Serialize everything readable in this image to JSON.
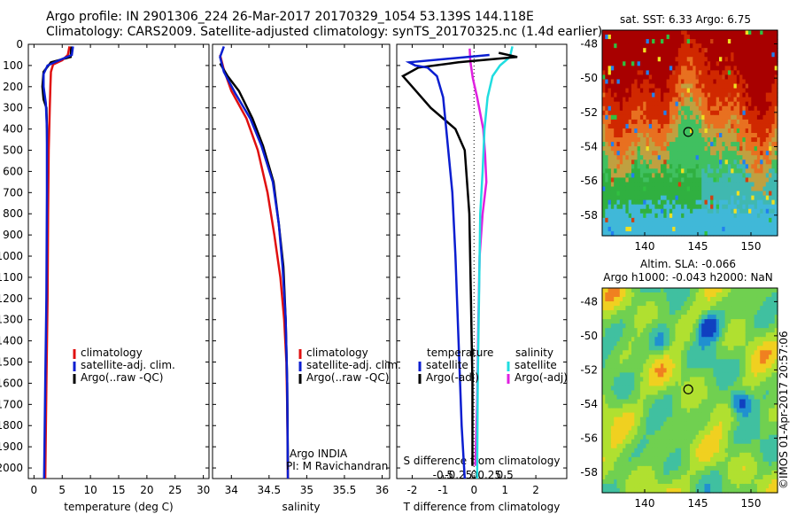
{
  "header": {
    "title_line1": "Argo profile: IN 2901306_224 26-Mar-2017 20170329_1054 53.139S 144.118E",
    "title_line2": "Climatology: CARS2009. Satellite-adjusted climatology: synTS_20170325.nc (1.4d earlier)"
  },
  "depth_ticks": [
    "0",
    "100",
    "200",
    "300",
    "400",
    "500",
    "600",
    "700",
    "800",
    "900",
    "1000",
    "1100",
    "1200",
    "1300",
    "1400",
    "1500",
    "1600",
    "1700",
    "1800",
    "1900",
    "2000"
  ],
  "chart_data": [
    {
      "id": "temperature",
      "type": "line",
      "xlabel": "temperature (deg C)",
      "ylabel": "",
      "xlim": [
        -1,
        31
      ],
      "ylim": [
        2050,
        0
      ],
      "xticks": [
        0,
        5,
        10,
        15,
        20,
        25,
        30
      ],
      "xtick_labels": [
        "0",
        "5",
        "10",
        "15",
        "20",
        "25",
        "30"
      ],
      "legend": {
        "placement": "bottom-center",
        "entries": [
          "climatology",
          "satellite-adj. clim.",
          "Argo(..raw -QC)"
        ]
      },
      "series": [
        {
          "name": "climatology",
          "color": "#e01010",
          "points": [
            [
              6.3,
              10
            ],
            [
              6.0,
              50
            ],
            [
              5.0,
              75
            ],
            [
              3.4,
              95
            ],
            [
              3.0,
              130
            ],
            [
              2.9,
              200
            ],
            [
              2.8,
              300
            ],
            [
              2.6,
              500
            ],
            [
              2.5,
              800
            ],
            [
              2.4,
              1200
            ],
            [
              2.2,
              1600
            ],
            [
              2.0,
              2050
            ]
          ]
        },
        {
          "name": "satellite-adj. clim.",
          "color": "#0b1ed0",
          "points": [
            [
              6.9,
              10
            ],
            [
              6.7,
              50
            ],
            [
              4.5,
              75
            ],
            [
              2.4,
              100
            ],
            [
              1.7,
              140
            ],
            [
              1.7,
              200
            ],
            [
              2.1,
              280
            ],
            [
              2.3,
              400
            ],
            [
              2.3,
              700
            ],
            [
              2.2,
              1200
            ],
            [
              2.0,
              1600
            ],
            [
              1.8,
              2050
            ]
          ]
        },
        {
          "name": "Argo(..raw -QC)",
          "color": "#000000",
          "points": [
            [
              6.6,
              10
            ],
            [
              6.5,
              60
            ],
            [
              3.0,
              85
            ],
            [
              1.7,
              130
            ],
            [
              1.5,
              200
            ],
            [
              1.7,
              260
            ],
            [
              2.2,
              300
            ],
            [
              2.3,
              400
            ],
            [
              2.4,
              600
            ],
            [
              2.3,
              1000
            ],
            [
              2.2,
              1400
            ],
            [
              2.0,
              1800
            ],
            [
              1.9,
              1990
            ]
          ]
        }
      ]
    },
    {
      "id": "salinity",
      "type": "line",
      "xlabel": "salinity",
      "ylabel": "",
      "xlim": [
        33.75,
        36.1
      ],
      "ylim": [
        2050,
        0
      ],
      "xticks": [
        34,
        34.5,
        35,
        35.5,
        36
      ],
      "xtick_labels": [
        "34",
        "34.5",
        "35",
        "35.5",
        "36"
      ],
      "legend": {
        "placement": "bottom-right",
        "entries": [
          "climatology",
          "satellite-adj. clim.",
          "Argo(..raw -QC)"
        ]
      },
      "annotations": [
        "Argo INDIA",
        "PI: M Ravichandran"
      ],
      "series": [
        {
          "name": "climatology",
          "color": "#e01010",
          "points": [
            [
              33.85,
              50
            ],
            [
              33.9,
              120
            ],
            [
              34.0,
              220
            ],
            [
              34.2,
              350
            ],
            [
              34.35,
              500
            ],
            [
              34.48,
              700
            ],
            [
              34.57,
              900
            ],
            [
              34.65,
              1100
            ],
            [
              34.7,
              1300
            ],
            [
              34.73,
              1500
            ],
            [
              34.74,
              1700
            ],
            [
              34.75,
              2050
            ]
          ]
        },
        {
          "name": "satellite-adj. clim.",
          "color": "#0b1ed0",
          "points": [
            [
              33.9,
              10
            ],
            [
              33.85,
              60
            ],
            [
              33.9,
              130
            ],
            [
              34.05,
              230
            ],
            [
              34.25,
              350
            ],
            [
              34.4,
              480
            ],
            [
              34.55,
              650
            ],
            [
              34.63,
              850
            ],
            [
              34.68,
              1050
            ],
            [
              34.72,
              1300
            ],
            [
              34.74,
              1600
            ],
            [
              34.75,
              2050
            ]
          ]
        },
        {
          "name": "Argo(..raw -QC)",
          "color": "#000000",
          "points": [
            [
              33.85,
              90
            ],
            [
              33.95,
              150
            ],
            [
              34.1,
              220
            ],
            [
              34.28,
              350
            ],
            [
              34.42,
              480
            ],
            [
              34.56,
              650
            ],
            [
              34.63,
              850
            ],
            [
              34.69,
              1050
            ],
            [
              34.72,
              1300
            ],
            [
              34.74,
              1600
            ],
            [
              34.75,
              1990
            ]
          ]
        }
      ]
    },
    {
      "id": "differences",
      "type": "line",
      "xlabel": "T difference from climatology",
      "xlabel_top": "S difference from climatology",
      "ylabel": "",
      "xlim": [
        -2.5,
        3.0
      ],
      "ylim": [
        2050,
        0
      ],
      "xticks": [
        -2,
        -1,
        0,
        1,
        2
      ],
      "xtick_labels": [
        "-2",
        "-1",
        "0",
        "1",
        "2"
      ],
      "s_ticks": [
        -0.5,
        -0.25,
        0,
        0.25,
        0.5
      ],
      "s_tick_labels": [
        "-0.5",
        "-0.25",
        "0",
        "0.25",
        "0.5"
      ],
      "legend": {
        "placement": "bottom-center",
        "group1_title": "temperature",
        "group2_title": "salinity",
        "entries": [
          "satellite",
          "Argo(-adj)",
          "satellite",
          "Argo(-adj)"
        ]
      },
      "series": [
        {
          "name": "satellite",
          "group": "temperature",
          "color": "#0b1ed0",
          "points": [
            [
              0.5,
              50
            ],
            [
              -2.1,
              85
            ],
            [
              -1.9,
              100
            ],
            [
              -1.5,
              110
            ],
            [
              -1.2,
              150
            ],
            [
              -1.0,
              250
            ],
            [
              -0.9,
              400
            ],
            [
              -0.7,
              700
            ],
            [
              -0.6,
              1000
            ],
            [
              -0.5,
              1400
            ],
            [
              -0.4,
              1800
            ],
            [
              -0.3,
              2050
            ]
          ]
        },
        {
          "name": "Argo(-adj)",
          "group": "temperature",
          "color": "#000000",
          "points": [
            [
              0.8,
              40
            ],
            [
              1.4,
              60
            ],
            [
              -0.5,
              85
            ],
            [
              -1.8,
              110
            ],
            [
              -2.3,
              150
            ],
            [
              -2.0,
              200
            ],
            [
              -1.4,
              300
            ],
            [
              -0.6,
              400
            ],
            [
              -0.3,
              500
            ],
            [
              -0.15,
              800
            ],
            [
              -0.1,
              1200
            ],
            [
              -0.05,
              1600
            ],
            [
              -0.05,
              1990
            ]
          ]
        },
        {
          "name": "satellite",
          "group": "salinity",
          "color": "#20dde0",
          "points": [
            [
              0.62,
              10
            ],
            [
              0.58,
              60
            ],
            [
              0.42,
              100
            ],
            [
              0.3,
              150
            ],
            [
              0.22,
              250
            ],
            [
              0.17,
              400
            ],
            [
              0.14,
              600
            ],
            [
              0.1,
              800
            ],
            [
              0.08,
              1200
            ],
            [
              0.06,
              1600
            ],
            [
              0.05,
              2050
            ]
          ]
        },
        {
          "name": "Argo(-adj)",
          "group": "salinity",
          "color": "#e020e0",
          "points": [
            [
              -0.07,
              20
            ],
            [
              -0.06,
              80
            ],
            [
              -0.02,
              160
            ],
            [
              0.05,
              250
            ],
            [
              0.15,
              400
            ],
            [
              0.18,
              520
            ],
            [
              0.2,
              650
            ],
            [
              0.14,
              800
            ],
            [
              0.09,
              1000
            ],
            [
              0.07,
              1300
            ],
            [
              0.05,
              1700
            ],
            [
              0.02,
              1990
            ]
          ]
        }
      ]
    },
    {
      "id": "sst_map",
      "type": "heatmap",
      "title": "sat. SST: 6.33 Argo: 6.75",
      "xticks": [
        140,
        145,
        150
      ],
      "yticks": [
        -48,
        -50,
        -52,
        -54,
        -56,
        -58
      ],
      "xtick_labels": [
        "140",
        "145",
        "150"
      ],
      "ytick_labels": [
        "-48",
        "-50",
        "-52",
        "-54",
        "-56",
        "-58"
      ],
      "xlim": [
        136,
        152.5
      ],
      "ylim": [
        -59.2,
        -47.2
      ],
      "marker": {
        "lon": 144.1,
        "lat": -53.14
      }
    },
    {
      "id": "sla_map",
      "type": "heatmap",
      "title_line1": "Altim. SLA: -0.066",
      "title_line2": "Argo h1000: -0.043 h2000: NaN",
      "xticks": [
        140,
        145,
        150
      ],
      "yticks": [
        -48,
        -50,
        -52,
        -54,
        -56,
        -58
      ],
      "xtick_labels": [
        "140",
        "145",
        "150"
      ],
      "ytick_labels": [
        "-48",
        "-50",
        "-52",
        "-54",
        "-56",
        "-58"
      ],
      "xlim": [
        136,
        152.5
      ],
      "ylim": [
        -59.2,
        -47.2
      ],
      "marker": {
        "lon": 144.1,
        "lat": -53.14
      }
    }
  ],
  "watermark": "©IMOS 01-Apr-2017 20:57:06"
}
